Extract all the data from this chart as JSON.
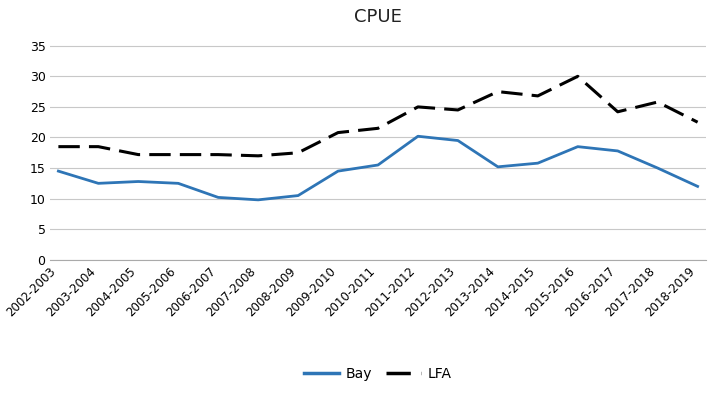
{
  "title": "CPUE",
  "categories": [
    "2002-2003",
    "2003-2004",
    "2004-2005",
    "2005-2006",
    "2006-2007",
    "2007-2008",
    "2008-2009",
    "2009-2010",
    "2010-2011",
    "2011-2012",
    "2012-2013",
    "2013-2014",
    "2014-2015",
    "2015-2016",
    "2016-2017",
    "2017-2018",
    "2018-2019"
  ],
  "bay_values": [
    14.5,
    12.5,
    12.8,
    12.5,
    10.2,
    9.8,
    10.5,
    14.5,
    15.5,
    20.2,
    19.5,
    15.2,
    15.8,
    18.5,
    17.8,
    15.0,
    12.0
  ],
  "lfa_values": [
    18.5,
    18.5,
    17.2,
    17.2,
    17.2,
    17.0,
    17.5,
    20.8,
    21.5,
    25.0,
    24.5,
    27.5,
    26.8,
    30.0,
    24.2,
    25.8,
    22.5
  ],
  "bay_color": "#2E75B6",
  "lfa_color": "#000000",
  "ylim": [
    0,
    37
  ],
  "yticks": [
    0,
    5,
    10,
    15,
    20,
    25,
    30,
    35
  ],
  "bay_label": "Bay",
  "lfa_label": "LFA",
  "bg_color": "#ffffff",
  "grid_color": "#c8c8c8",
  "title_fontsize": 13,
  "tick_fontsize": 8.5,
  "legend_fontsize": 10
}
